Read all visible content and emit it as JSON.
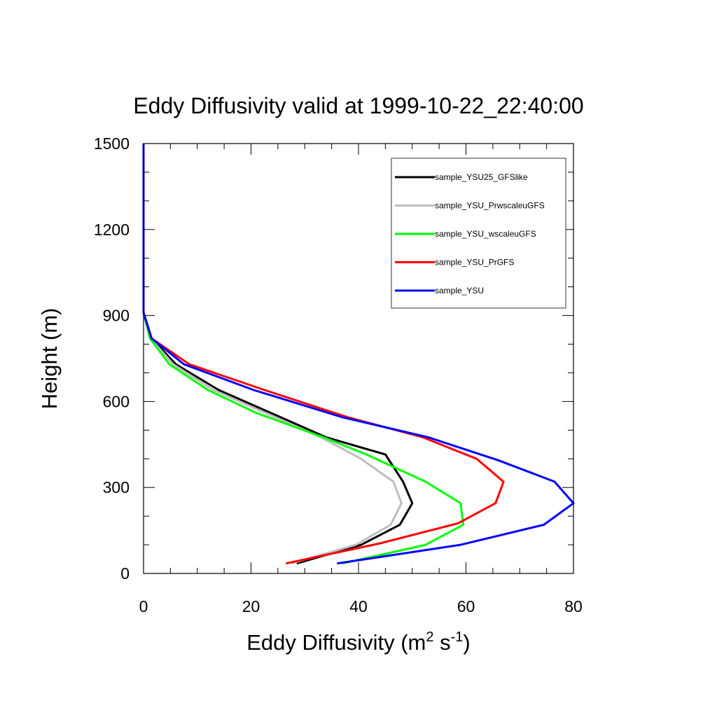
{
  "chart_data": {
    "type": "line",
    "title": "Eddy Diffusivity valid at 1999-10-22_22:40:00",
    "xlabel": {
      "base": "Eddy Diffusivity (m",
      "sup1": "2",
      "mid": " s",
      "sup2": "-1",
      "end": ")"
    },
    "ylabel": "Height (m)",
    "xlim": [
      0,
      80
    ],
    "ylim": [
      0,
      1500
    ],
    "xticks": [
      0,
      20,
      40,
      60,
      80
    ],
    "yticks": [
      0,
      300,
      600,
      900,
      1200,
      1500
    ],
    "legend_position": "top-right",
    "series": [
      {
        "name": "sample_YSU25_GFSlike",
        "color": "#000000",
        "points": [
          [
            28.5,
            35
          ],
          [
            40.5,
            100
          ],
          [
            47.7,
            170
          ],
          [
            50.0,
            245
          ],
          [
            48.3,
            320
          ],
          [
            45.0,
            415
          ],
          [
            34.0,
            475
          ],
          [
            22.5,
            570
          ],
          [
            14.0,
            640
          ],
          [
            6.0,
            730
          ],
          [
            1.5,
            820
          ],
          [
            0,
            910
          ],
          [
            0,
            1000
          ],
          [
            0,
            1100
          ],
          [
            0,
            1200
          ],
          [
            0,
            1300
          ],
          [
            0,
            1400
          ],
          [
            0,
            1500
          ]
        ]
      },
      {
        "name": "sample_YSU_PrwscaleuGFS",
        "color": "#bebebe",
        "points": [
          [
            27.5,
            35
          ],
          [
            39.5,
            100
          ],
          [
            46.0,
            170
          ],
          [
            48.0,
            245
          ],
          [
            46.5,
            320
          ],
          [
            40.5,
            400
          ],
          [
            33.0,
            475
          ],
          [
            21.5,
            570
          ],
          [
            13.0,
            640
          ],
          [
            5.5,
            730
          ],
          [
            1.3,
            820
          ],
          [
            0,
            910
          ],
          [
            0,
            1000
          ],
          [
            0,
            1100
          ],
          [
            0,
            1200
          ],
          [
            0,
            1300
          ],
          [
            0,
            1400
          ],
          [
            0,
            1500
          ]
        ]
      },
      {
        "name": "sample_YSU_wscaleuGFS",
        "color": "#00ff00",
        "points": [
          [
            37.0,
            35
          ],
          [
            52.5,
            100
          ],
          [
            59.5,
            170
          ],
          [
            59.0,
            245
          ],
          [
            52.5,
            320
          ],
          [
            41.5,
            415
          ],
          [
            33.5,
            475
          ],
          [
            21.0,
            560
          ],
          [
            12.0,
            640
          ],
          [
            4.8,
            730
          ],
          [
            1.2,
            820
          ],
          [
            0,
            910
          ],
          [
            0,
            1000
          ],
          [
            0,
            1100
          ],
          [
            0,
            1200
          ],
          [
            0,
            1300
          ],
          [
            0,
            1400
          ],
          [
            0,
            1500
          ]
        ]
      },
      {
        "name": "sample_YSU_PrGFS",
        "color": "#ff0000",
        "points": [
          [
            26.5,
            35
          ],
          [
            44.0,
            105
          ],
          [
            58.5,
            175
          ],
          [
            65.5,
            245
          ],
          [
            67.0,
            320
          ],
          [
            62.0,
            400
          ],
          [
            52.0,
            475
          ],
          [
            38.0,
            545
          ],
          [
            22.5,
            640
          ],
          [
            8.5,
            730
          ],
          [
            1.5,
            820
          ],
          [
            0,
            910
          ],
          [
            0,
            1000
          ],
          [
            0,
            1100
          ],
          [
            0,
            1200
          ],
          [
            0,
            1300
          ],
          [
            0,
            1400
          ],
          [
            0,
            1500
          ]
        ]
      },
      {
        "name": "sample_YSU",
        "color": "#0000ff",
        "points": [
          [
            36.0,
            35
          ],
          [
            59.0,
            100
          ],
          [
            74.5,
            170
          ],
          [
            80.0,
            245
          ],
          [
            76.5,
            320
          ],
          [
            66.0,
            395
          ],
          [
            53.0,
            475
          ],
          [
            37.0,
            545
          ],
          [
            20.5,
            640
          ],
          [
            7.5,
            730
          ],
          [
            1.5,
            820
          ],
          [
            0,
            910
          ],
          [
            0,
            1000
          ],
          [
            0,
            1100
          ],
          [
            0,
            1200
          ],
          [
            0,
            1300
          ],
          [
            0,
            1400
          ],
          [
            0,
            1500
          ]
        ]
      }
    ]
  }
}
